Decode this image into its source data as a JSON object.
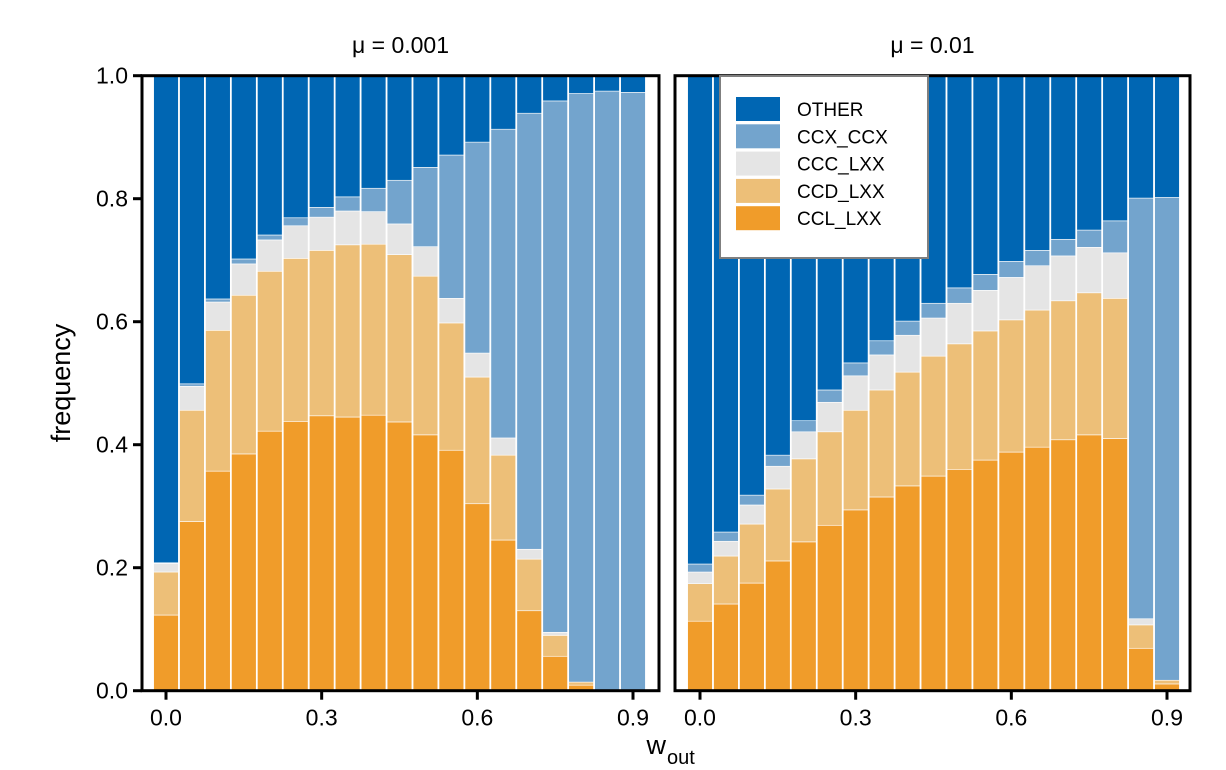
{
  "chart_data": {
    "type": "bar",
    "stacked": true,
    "normalized": true,
    "ylabel": "frequency",
    "xlabel_main": "w",
    "xlabel_sub": "out",
    "ylim": [
      0,
      1
    ],
    "xlim": [
      -0.025,
      0.925
    ],
    "yticks": [
      "0.0",
      "0.2",
      "0.4",
      "0.6",
      "0.8",
      "1.0"
    ],
    "ytick_values": [
      0,
      0.2,
      0.4,
      0.6,
      0.8,
      1.0
    ],
    "xticks": [
      "0.0",
      "0.3",
      "0.6",
      "0.9"
    ],
    "xtick_values": [
      0,
      0.3,
      0.6,
      0.9
    ],
    "grid": false,
    "legend": {
      "placement": "top-left of right panel",
      "entries": [
        {
          "name": "OTHER",
          "color": "#0066b3"
        },
        {
          "name": "CCX_CCX",
          "color": "#73a4cd"
        },
        {
          "name": "CCC_LXX",
          "color": "#e5e5e5"
        },
        {
          "name": "CCD_LXX",
          "color": "#edbf78"
        },
        {
          "name": "CCL_LXX",
          "color": "#f09c2a"
        }
      ]
    },
    "stack_order_bottom_to_top": [
      "CCL_LXX",
      "CCD_LXX",
      "CCC_LXX",
      "CCX_CCX",
      "OTHER"
    ],
    "x": [
      0.0,
      0.05,
      0.1,
      0.15,
      0.2,
      0.25,
      0.3,
      0.35,
      0.4,
      0.45,
      0.5,
      0.55,
      0.6,
      0.65,
      0.7,
      0.75,
      0.8,
      0.85,
      0.9
    ],
    "panels": [
      {
        "title": "μ = 0.001",
        "series": [
          {
            "name": "CCL_LXX",
            "values": [
              0.123,
              0.275,
              0.357,
              0.385,
              0.422,
              0.438,
              0.447,
              0.445,
              0.448,
              0.437,
              0.416,
              0.391,
              0.304,
              0.245,
              0.13,
              0.056,
              0.009,
              0.0,
              0.0
            ]
          },
          {
            "name": "CCD_LXX",
            "values": [
              0.07,
              0.181,
              0.229,
              0.258,
              0.26,
              0.265,
              0.269,
              0.28,
              0.278,
              0.272,
              0.258,
              0.207,
              0.206,
              0.138,
              0.084,
              0.034,
              0.005,
              0.0,
              0.0
            ]
          },
          {
            "name": "CCC_LXX",
            "values": [
              0.014,
              0.039,
              0.046,
              0.051,
              0.051,
              0.053,
              0.054,
              0.055,
              0.053,
              0.05,
              0.048,
              0.04,
              0.039,
              0.028,
              0.016,
              0.005,
              0.0,
              0.0,
              0.0
            ]
          },
          {
            "name": "CCX_CCX",
            "values": [
              0.001,
              0.004,
              0.005,
              0.008,
              0.008,
              0.013,
              0.016,
              0.023,
              0.038,
              0.071,
              0.129,
              0.233,
              0.343,
              0.502,
              0.709,
              0.864,
              0.957,
              0.975,
              0.973
            ]
          },
          {
            "name": "OTHER",
            "values": [
              0.792,
              0.501,
              0.363,
              0.298,
              0.259,
              0.231,
              0.214,
              0.197,
              0.183,
              0.17,
              0.149,
              0.129,
              0.108,
              0.087,
              0.061,
              0.041,
              0.029,
              0.025,
              0.027
            ]
          }
        ]
      },
      {
        "title": "μ = 0.01",
        "series": [
          {
            "name": "CCL_LXX",
            "values": [
              0.113,
              0.141,
              0.175,
              0.211,
              0.242,
              0.269,
              0.294,
              0.315,
              0.333,
              0.349,
              0.36,
              0.375,
              0.388,
              0.396,
              0.408,
              0.416,
              0.41,
              0.069,
              0.011
            ]
          },
          {
            "name": "CCD_LXX",
            "values": [
              0.061,
              0.078,
              0.096,
              0.117,
              0.135,
              0.152,
              0.162,
              0.174,
              0.185,
              0.195,
              0.204,
              0.21,
              0.215,
              0.223,
              0.226,
              0.231,
              0.228,
              0.038,
              0.006
            ]
          },
          {
            "name": "CCC_LXX",
            "values": [
              0.019,
              0.024,
              0.031,
              0.037,
              0.044,
              0.048,
              0.056,
              0.057,
              0.06,
              0.062,
              0.066,
              0.066,
              0.069,
              0.072,
              0.073,
              0.074,
              0.074,
              0.01,
              0.0
            ]
          },
          {
            "name": "CCX_CCX",
            "values": [
              0.013,
              0.015,
              0.016,
              0.018,
              0.018,
              0.02,
              0.021,
              0.023,
              0.023,
              0.024,
              0.025,
              0.026,
              0.026,
              0.025,
              0.027,
              0.028,
              0.052,
              0.684,
              0.785
            ]
          },
          {
            "name": "OTHER",
            "values": [
              0.794,
              0.742,
              0.682,
              0.617,
              0.561,
              0.511,
              0.467,
              0.431,
              0.399,
              0.37,
              0.345,
              0.323,
              0.302,
              0.284,
              0.266,
              0.251,
              0.236,
              0.199,
              0.198
            ]
          }
        ]
      }
    ]
  }
}
